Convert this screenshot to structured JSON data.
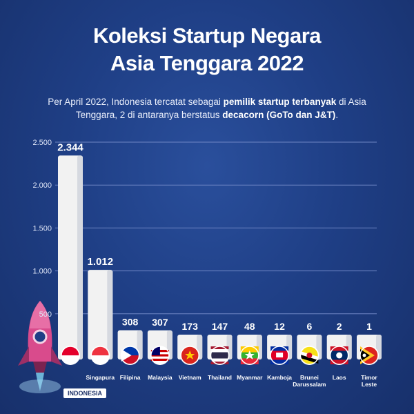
{
  "title_line1": "Koleksi Startup Negara",
  "title_line2": "Asia Tenggara 2022",
  "subtitle": {
    "part1": "Per April 2022, Indonesia tercatat sebagai ",
    "bold1": "pemilik startup terbanyak",
    "part2": " di Asia Tenggara, 2 di antaranya berstatus ",
    "bold2": "decacorn (GoTo dan J&T)",
    "part3": "."
  },
  "badge": "INDONESIA",
  "colors": {
    "background": "#1f3f86",
    "bar": "#f2f2f2",
    "text": "#ffffff",
    "grid": "#6f86c4"
  },
  "chart_data": {
    "type": "bar",
    "categories": [
      "Indonesia",
      "Singapura",
      "Filipina",
      "Malaysia",
      "Vietnam",
      "Thailand",
      "Myanmar",
      "Kamboja",
      "Brunei Darussalam",
      "Laos",
      "Timor Leste"
    ],
    "category_labels": [
      "",
      "Singapura",
      "Filipina",
      "Malaysia",
      "Vietnam",
      "Thailand",
      "Myanmar",
      "Kamboja",
      "Brunei\nDarussalam",
      "Laos",
      "Timor\nLeste"
    ],
    "values": [
      2344,
      1012,
      308,
      307,
      173,
      147,
      48,
      12,
      6,
      2,
      1
    ],
    "value_labels": [
      "2.344",
      "1.012",
      "308",
      "307",
      "173",
      "147",
      "48",
      "12",
      "6",
      "2",
      "1"
    ],
    "yticks": [
      "500",
      "1.000",
      "1.500",
      "2.000",
      "2.500"
    ],
    "ytick_values": [
      500,
      1000,
      1500,
      2000,
      2500
    ],
    "ylim": [
      0,
      2500
    ],
    "grid": true,
    "flags": [
      "indonesia-flag",
      "singapore-flag",
      "philippines-flag",
      "malaysia-flag",
      "vietnam-flag",
      "thailand-flag",
      "myanmar-flag",
      "cambodia-flag",
      "brunei-flag",
      "laos-flag",
      "timor-leste-flag"
    ]
  }
}
